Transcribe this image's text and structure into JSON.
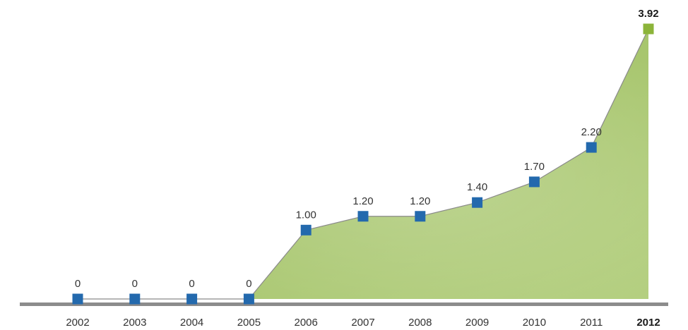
{
  "chart_data": {
    "type": "area",
    "title": "",
    "xlabel": "",
    "ylabel": "",
    "categories": [
      "2002",
      "2003",
      "2004",
      "2005",
      "2006",
      "2007",
      "2008",
      "2009",
      "2010",
      "2011",
      "2012"
    ],
    "series": [
      {
        "values": [
          0,
          0,
          0,
          0,
          1.0,
          1.2,
          1.2,
          1.4,
          1.7,
          2.2,
          3.92
        ],
        "data_labels": [
          "0",
          "0",
          "0",
          "0",
          "1.00",
          "1.20",
          "1.20",
          "1.40",
          "1.70",
          "2.20",
          "3.92"
        ]
      }
    ],
    "highlight_index": 10,
    "ylim": [
      0,
      3.92
    ],
    "grid": false,
    "legend": "none",
    "colors": {
      "area_fill": "#a5c46a",
      "area_fill_light": "#c9dca0",
      "line": "#8a8a8a",
      "marker": "#2369ad",
      "marker_highlight": "#8cb43a",
      "baseline": "#8c8c8c"
    }
  }
}
